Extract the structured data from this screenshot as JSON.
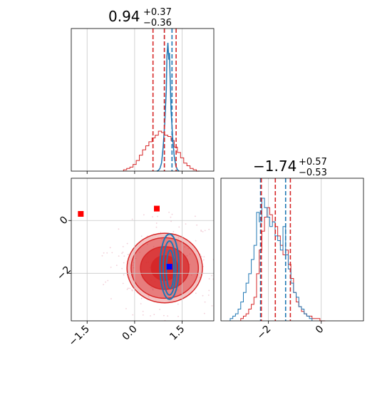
{
  "colors": {
    "prior": "#d62728",
    "posterior": "#1f77b4",
    "truth": "#0000ff",
    "marker": "#ff0000"
  },
  "chart_data": [
    {
      "type": "histogram",
      "panel": "param1-marginal",
      "title": {
        "main": "0.94",
        "plus": "+0.37",
        "minus": "−0.36"
      },
      "xlim": [
        -2.0,
        2.5
      ],
      "grid": true,
      "red_quantiles": [
        0.58,
        0.94,
        1.31
      ],
      "blue_quantiles": [
        0.94,
        1.18
      ],
      "red_hist": {
        "x": [
          -0.3,
          -0.2,
          -0.1,
          0.0,
          0.1,
          0.2,
          0.3,
          0.4,
          0.5,
          0.6,
          0.7,
          0.8,
          0.9,
          1.0,
          1.1,
          1.2,
          1.3,
          1.4,
          1.5,
          1.6,
          1.7,
          1.8,
          1.9,
          2.0
        ],
        "counts": [
          1,
          2,
          3,
          5,
          8,
          12,
          16,
          19,
          22,
          25,
          27,
          30,
          29,
          27,
          26,
          23,
          18,
          14,
          10,
          6,
          4,
          2,
          1,
          0
        ]
      },
      "blue_curve": {
        "x": [
          0.7,
          0.75,
          0.8,
          0.85,
          0.9,
          0.95,
          1.0,
          1.02,
          1.05,
          1.08,
          1.1,
          1.12,
          1.15,
          1.2,
          1.25,
          1.3,
          1.35,
          1.4
        ],
        "y": [
          0,
          1,
          4,
          12,
          35,
          70,
          120,
          170,
          190,
          165,
          175,
          140,
          90,
          50,
          22,
          8,
          2,
          0
        ]
      }
    },
    {
      "type": "contour",
      "panel": "joint",
      "xlim": [
        -2.0,
        2.5
      ],
      "ylim": [
        -3.8,
        1.6
      ],
      "xticks": [
        "−1.5",
        "0.0",
        "1.5"
      ],
      "yticks": [
        "0",
        "−2"
      ],
      "grid": true,
      "markers_red": [
        [
          -1.7,
          0.25
        ],
        [
          0.7,
          0.45
        ]
      ],
      "marker_blue": [
        1.1,
        -1.75
      ],
      "red_contours": [
        {
          "cx": 0.95,
          "cy": -1.8,
          "rx": 1.4,
          "ry": 1.55
        },
        {
          "cx": 0.95,
          "cy": -1.8,
          "rx": 1.25,
          "ry": 1.35
        },
        {
          "cx": 0.95,
          "cy": -1.8,
          "rx": 0.9,
          "ry": 0.95
        },
        {
          "cx": 0.95,
          "cy": -1.8,
          "rx": 0.5,
          "ry": 0.55
        }
      ],
      "blue_contours": [
        {
          "cx": 1.1,
          "cy": -1.75,
          "rx": 0.3,
          "ry": 1.45
        },
        {
          "cx": 1.1,
          "cy": -1.8,
          "rx": 0.2,
          "ry": 1.2
        },
        {
          "cx": 1.12,
          "cy": -1.85,
          "rx": 0.12,
          "ry": 0.85
        }
      ]
    },
    {
      "type": "histogram",
      "panel": "param2-marginal",
      "title": {
        "main": "−1.74",
        "plus": "+0.57",
        "minus": "−0.53"
      },
      "xlim": [
        -3.8,
        1.6
      ],
      "xticks": [
        "−2",
        "0"
      ],
      "grid": true,
      "red_quantiles": [
        -2.27,
        -1.74,
        -1.17
      ],
      "blue_quantiles": [
        -2.3,
        -1.35
      ],
      "red_hist": {
        "x": [
          -3.0,
          -2.9,
          -2.8,
          -2.7,
          -2.6,
          -2.5,
          -2.4,
          -2.3,
          -2.2,
          -2.1,
          -2.0,
          -1.9,
          -1.8,
          -1.7,
          -1.6,
          -1.5,
          -1.4,
          -1.3,
          -1.2,
          -1.1,
          -1.0,
          -0.9,
          -0.8,
          -0.7,
          -0.6,
          -0.5,
          -0.4,
          -0.3,
          -0.2,
          -0.1,
          0.0,
          0.1
        ],
        "counts": [
          1,
          2,
          3,
          5,
          7,
          10,
          20,
          30,
          38,
          44,
          48,
          45,
          42,
          40,
          36,
          32,
          28,
          30,
          24,
          18,
          12,
          8,
          6,
          4,
          3,
          2,
          2,
          1,
          1,
          1,
          0,
          0
        ]
      },
      "blue_hist": {
        "x": [
          -3.4,
          -3.3,
          -3.2,
          -3.1,
          -3.0,
          -2.9,
          -2.8,
          -2.7,
          -2.6,
          -2.5,
          -2.4,
          -2.3,
          -2.2,
          -2.1,
          -2.0,
          -1.9,
          -1.8,
          -1.7,
          -1.6,
          -1.5,
          -1.4,
          -1.3,
          -1.2,
          -1.1,
          -1.0,
          -0.9,
          -0.8,
          -0.7,
          -0.6,
          -0.5,
          -0.4
        ],
        "counts": [
          1,
          2,
          3,
          5,
          8,
          12,
          16,
          20,
          26,
          32,
          46,
          42,
          52,
          48,
          44,
          40,
          42,
          36,
          34,
          30,
          40,
          28,
          22,
          16,
          12,
          10,
          6,
          5,
          3,
          2,
          1
        ]
      }
    }
  ]
}
